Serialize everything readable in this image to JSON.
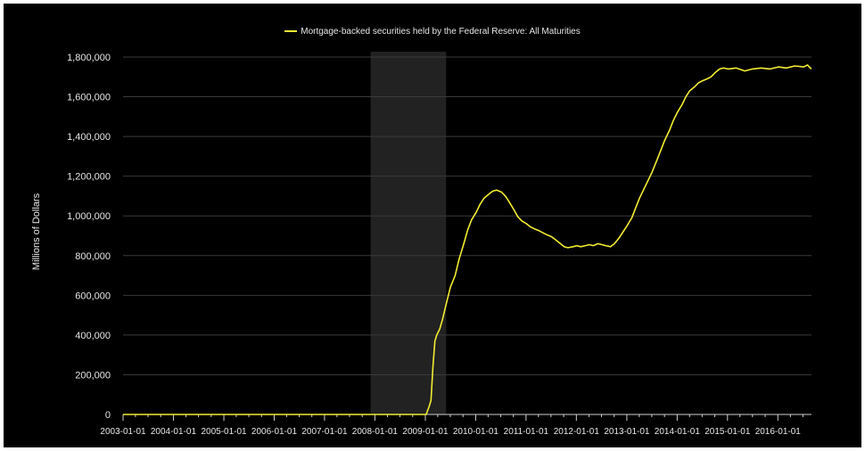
{
  "chart_data": {
    "type": "line",
    "title": "",
    "ylabel": "Millions of Dollars",
    "xlabel": "",
    "ylim": [
      0,
      1800000
    ],
    "y_ticks": [
      0,
      200000,
      400000,
      600000,
      800000,
      1000000,
      1200000,
      1400000,
      1600000,
      1800000
    ],
    "y_tick_labels": [
      "0",
      "200,000",
      "400,000",
      "600,000",
      "800,000",
      "1,000,000",
      "1,200,000",
      "1,400,000",
      "1,600,000",
      "1,800,000"
    ],
    "x_tick_labels": [
      "2003-01-01",
      "2004-01-01",
      "2005-01-01",
      "2006-01-01",
      "2007-01-01",
      "2008-01-01",
      "2009-01-01",
      "2010-01-01",
      "2011-01-01",
      "2012-01-01",
      "2013-01-01",
      "2014-01-01",
      "2015-01-01",
      "2016-01-01"
    ],
    "xlim": [
      "2003-01-01",
      "2016-09-01"
    ],
    "grid": true,
    "legend_position": "top-center",
    "recession_shading": {
      "start": "2007-12-01",
      "end": "2009-06-01"
    },
    "series": [
      {
        "name": "Mortgage-backed securities held by the Federal Reserve: All Maturities",
        "color": "#f2ec33",
        "points": [
          [
            "2003-01-01",
            0
          ],
          [
            "2008-12-31",
            0
          ],
          [
            "2009-01-07",
            0
          ],
          [
            "2009-01-28",
            40000
          ],
          [
            "2009-02-11",
            70000
          ],
          [
            "2009-02-25",
            240000
          ],
          [
            "2009-03-11",
            370000
          ],
          [
            "2009-03-25",
            400000
          ],
          [
            "2009-04-15",
            430000
          ],
          [
            "2009-05-06",
            480000
          ],
          [
            "2009-06-03",
            560000
          ],
          [
            "2009-07-01",
            640000
          ],
          [
            "2009-08-05",
            700000
          ],
          [
            "2009-09-02",
            780000
          ],
          [
            "2009-10-07",
            860000
          ],
          [
            "2009-11-04",
            930000
          ],
          [
            "2009-12-02",
            980000
          ],
          [
            "2010-01-06",
            1020000
          ],
          [
            "2010-02-03",
            1060000
          ],
          [
            "2010-03-03",
            1090000
          ],
          [
            "2010-04-07",
            1110000
          ],
          [
            "2010-05-05",
            1125000
          ],
          [
            "2010-06-02",
            1130000
          ],
          [
            "2010-07-07",
            1120000
          ],
          [
            "2010-08-04",
            1100000
          ],
          [
            "2010-09-01",
            1070000
          ],
          [
            "2010-10-06",
            1030000
          ],
          [
            "2010-11-03",
            995000
          ],
          [
            "2010-12-01",
            975000
          ],
          [
            "2011-01-05",
            960000
          ],
          [
            "2011-02-02",
            945000
          ],
          [
            "2011-03-02",
            935000
          ],
          [
            "2011-04-06",
            925000
          ],
          [
            "2011-05-04",
            915000
          ],
          [
            "2011-06-01",
            905000
          ],
          [
            "2011-07-06",
            895000
          ],
          [
            "2011-08-03",
            880000
          ],
          [
            "2011-09-07",
            860000
          ],
          [
            "2011-10-05",
            845000
          ],
          [
            "2011-11-02",
            840000
          ],
          [
            "2011-12-07",
            845000
          ],
          [
            "2012-01-04",
            850000
          ],
          [
            "2012-02-01",
            845000
          ],
          [
            "2012-03-07",
            850000
          ],
          [
            "2012-04-04",
            855000
          ],
          [
            "2012-05-02",
            850000
          ],
          [
            "2012-06-06",
            860000
          ],
          [
            "2012-07-04",
            855000
          ],
          [
            "2012-08-01",
            850000
          ],
          [
            "2012-09-05",
            845000
          ],
          [
            "2012-10-03",
            860000
          ],
          [
            "2012-11-07",
            890000
          ],
          [
            "2012-12-05",
            920000
          ],
          [
            "2013-01-02",
            950000
          ],
          [
            "2013-02-06",
            990000
          ],
          [
            "2013-03-06",
            1040000
          ],
          [
            "2013-04-03",
            1090000
          ],
          [
            "2013-05-01",
            1130000
          ],
          [
            "2013-06-05",
            1180000
          ],
          [
            "2013-07-03",
            1220000
          ],
          [
            "2013-08-07",
            1280000
          ],
          [
            "2013-09-04",
            1330000
          ],
          [
            "2013-10-02",
            1380000
          ],
          [
            "2013-11-06",
            1430000
          ],
          [
            "2013-12-04",
            1480000
          ],
          [
            "2014-01-01",
            1520000
          ],
          [
            "2014-02-05",
            1560000
          ],
          [
            "2014-03-05",
            1600000
          ],
          [
            "2014-04-02",
            1630000
          ],
          [
            "2014-05-07",
            1650000
          ],
          [
            "2014-06-04",
            1670000
          ],
          [
            "2014-07-02",
            1680000
          ],
          [
            "2014-08-06",
            1690000
          ],
          [
            "2014-09-03",
            1700000
          ],
          [
            "2014-10-01",
            1720000
          ],
          [
            "2014-11-05",
            1740000
          ],
          [
            "2014-12-03",
            1745000
          ],
          [
            "2015-01-07",
            1740000
          ],
          [
            "2015-03-04",
            1745000
          ],
          [
            "2015-05-06",
            1730000
          ],
          [
            "2015-07-01",
            1740000
          ],
          [
            "2015-09-02",
            1745000
          ],
          [
            "2015-11-04",
            1740000
          ],
          [
            "2016-01-06",
            1750000
          ],
          [
            "2016-03-02",
            1745000
          ],
          [
            "2016-05-04",
            1755000
          ],
          [
            "2016-07-06",
            1750000
          ],
          [
            "2016-08-03",
            1760000
          ],
          [
            "2016-08-31",
            1740000
          ]
        ]
      }
    ]
  }
}
